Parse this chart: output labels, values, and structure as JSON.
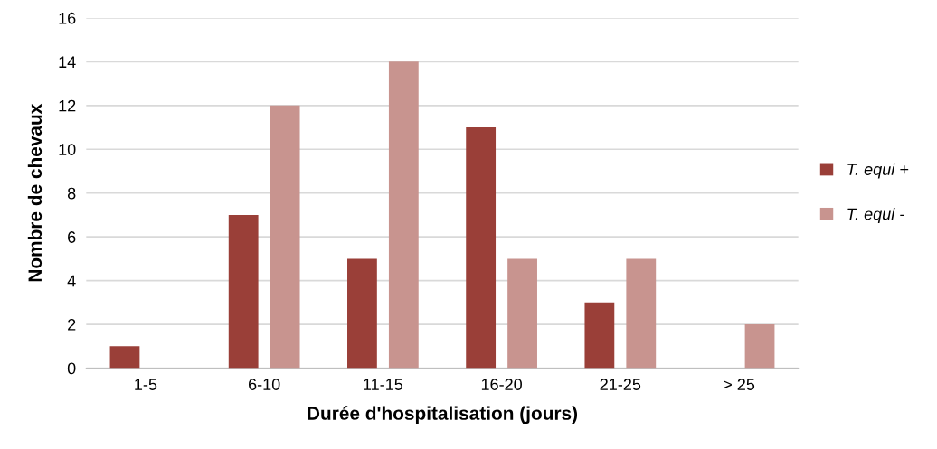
{
  "chart_data": {
    "type": "bar",
    "xlabel": "Durée d'hospitalisation (jours)",
    "ylabel": "Nombre de chevaux",
    "categories": [
      "1-5",
      "6-10",
      "11-15",
      "16-20",
      "21-25",
      "> 25"
    ],
    "series": [
      {
        "name": "T. equi +",
        "color": "#9a3f38",
        "values": [
          1,
          7,
          5,
          11,
          3,
          0
        ]
      },
      {
        "name": "T. equi -",
        "color": "#c8948f",
        "values": [
          0,
          12,
          14,
          5,
          5,
          2
        ]
      }
    ],
    "ylim": [
      0,
      16
    ],
    "yticks": [
      0,
      2,
      4,
      6,
      8,
      10,
      12,
      14,
      16
    ],
    "grid": "y",
    "legend": "right"
  }
}
